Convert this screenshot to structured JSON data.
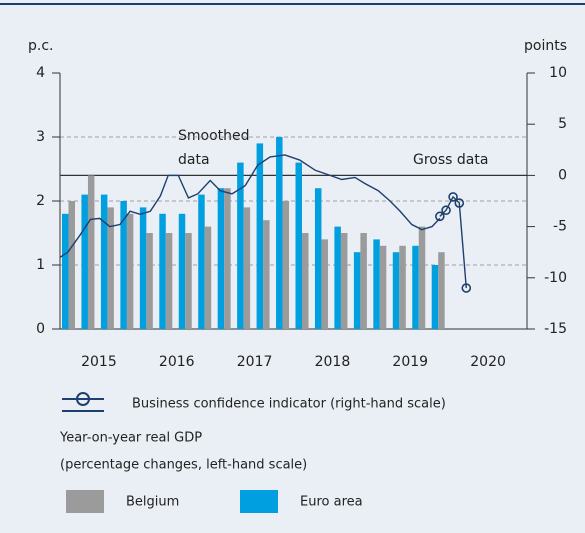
{
  "chart_data": {
    "type": "bar",
    "ylabel": "p.c.",
    "y2label": "points",
    "xlim": [
      2015,
      2021
    ],
    "xticks": [
      {
        "value": 2015.5,
        "label": "2015"
      },
      {
        "value": 2016.5,
        "label": "2016"
      },
      {
        "value": 2017.5,
        "label": "2017"
      },
      {
        "value": 2018.5,
        "label": "2018"
      },
      {
        "value": 2019.5,
        "label": "2019"
      },
      {
        "value": 2020.5,
        "label": "2020"
      }
    ],
    "ylim": [
      0,
      4
    ],
    "yticks": [
      0,
      1,
      2,
      3,
      4
    ],
    "y2lim": [
      -15,
      10
    ],
    "y2ticks": [
      10,
      5,
      0,
      -5,
      -10,
      -15
    ],
    "grid": true,
    "annotations": {
      "smoothed": [
        "Smoothed",
        "data"
      ],
      "gross": "Gross data"
    },
    "legend_group_title": [
      "Year-on-year real GDP",
      "(percentage changes, left-hand scale)"
    ],
    "series": [
      {
        "name": "Euro area",
        "type": "bar",
        "color": "#00a0e0",
        "x": [
          2015,
          2015.25,
          2015.5,
          2015.75,
          2016,
          2016.25,
          2016.5,
          2016.75,
          2017,
          2017.25,
          2017.5,
          2017.75,
          2018,
          2018.25,
          2018.5,
          2018.75,
          2019,
          2019.25,
          2019.5,
          2019.75
        ],
        "values": [
          1.8,
          2.1,
          2.1,
          2.0,
          1.9,
          1.8,
          1.8,
          2.1,
          2.2,
          2.6,
          2.9,
          3.0,
          2.6,
          2.2,
          1.6,
          1.2,
          1.4,
          1.2,
          1.3,
          1.0
        ]
      },
      {
        "name": "Belgium",
        "type": "bar",
        "color": "#9b9b9b",
        "x": [
          2015,
          2015.25,
          2015.5,
          2015.75,
          2016,
          2016.25,
          2016.5,
          2016.75,
          2017,
          2017.25,
          2017.5,
          2017.75,
          2018,
          2018.25,
          2018.5,
          2018.75,
          2019,
          2019.25,
          2019.5,
          2019.75
        ],
        "values": [
          2.0,
          2.4,
          1.9,
          1.8,
          1.5,
          1.5,
          1.5,
          1.6,
          2.2,
          1.9,
          1.7,
          2.0,
          1.5,
          1.4,
          1.5,
          1.5,
          1.3,
          1.3,
          1.6,
          1.2
        ]
      },
      {
        "name": "Business confidence indicator (right-hand scale)",
        "type": "line",
        "axis": "y2",
        "color": "#1f3f6e",
        "x": [
          2015.0,
          2015.1,
          2015.26,
          2015.39,
          2015.51,
          2015.64,
          2015.77,
          2015.9,
          2016.03,
          2016.16,
          2016.29,
          2016.39,
          2016.52,
          2016.65,
          2016.77,
          2016.93,
          2017.06,
          2017.21,
          2017.38,
          2017.54,
          2017.7,
          2017.89,
          2018.08,
          2018.28,
          2018.47,
          2018.62,
          2018.79,
          2018.92,
          2019.09,
          2019.24,
          2019.37,
          2019.52,
          2019.65,
          2019.78,
          2019.88
        ],
        "values": [
          -8,
          -7.5,
          -5.8,
          -4.3,
          -4.2,
          -5.0,
          -4.8,
          -3.5,
          -3.8,
          -3.5,
          -2.0,
          0,
          0,
          -2.2,
          -1.8,
          -0.5,
          -1.5,
          -1.8,
          -1.0,
          1.0,
          1.8,
          2.0,
          1.5,
          0.5,
          0,
          -0.4,
          -0.2,
          -0.8,
          -1.5,
          -2.5,
          -3.5,
          -4.8,
          -5.3,
          -5.0,
          -4.2
        ],
        "gross_x": [
          2019.88,
          2019.96,
          2020.05,
          2020.13,
          2020.22
        ],
        "gross_values": [
          -4,
          -3.4,
          -2.1,
          -2.7,
          -11
        ]
      }
    ]
  }
}
